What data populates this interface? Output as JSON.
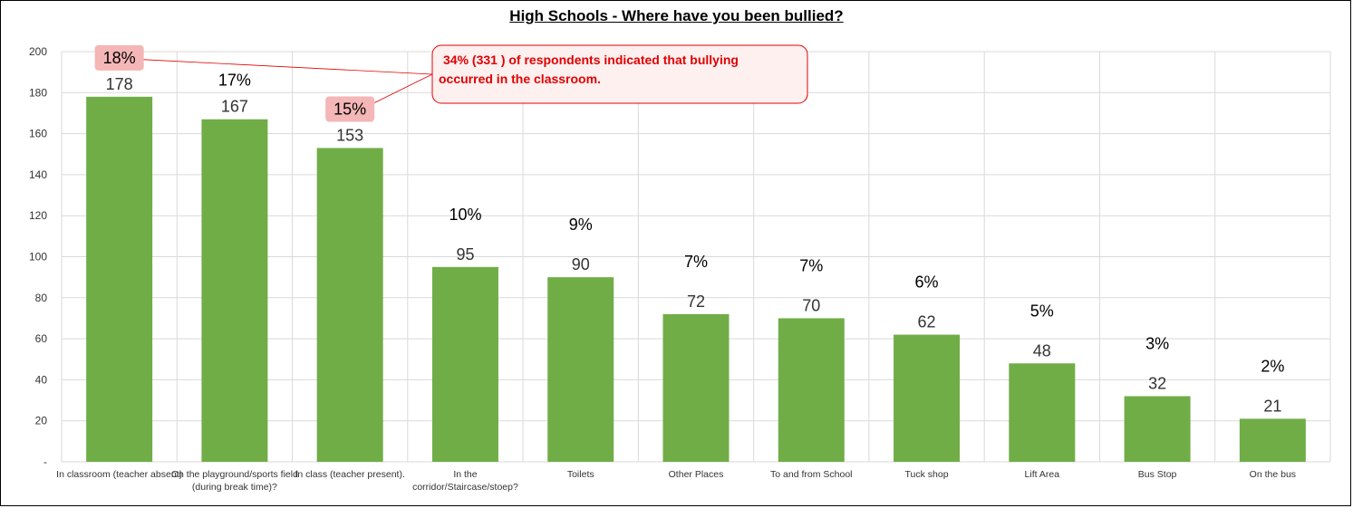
{
  "chart_data": {
    "type": "bar",
    "title": "High Schools - Where have you been bullied?",
    "categories": [
      "In classroom (teacher absent)",
      "On the playground/sports field (during break time)?",
      "In class (teacher present).",
      "In the corridor/Staircase/stoep?",
      "Toilets",
      "Other Places",
      "To and from School",
      "Tuck shop",
      "Lift Area",
      "Bus Stop",
      "On the bus"
    ],
    "values": [
      178,
      167,
      153,
      95,
      90,
      72,
      70,
      62,
      48,
      32,
      21
    ],
    "percent_labels": [
      "18%",
      "17%",
      "15%",
      "10%",
      "9%",
      "7%",
      "7%",
      "6%",
      "5%",
      "3%",
      "2%"
    ],
    "highlighted_percent_indices": [
      0,
      2
    ],
    "ylim": [
      0,
      200
    ],
    "yticks": [
      "-",
      "20",
      "40",
      "60",
      "80",
      "100",
      "120",
      "140",
      "160",
      "180",
      "200"
    ],
    "xlabel": "",
    "ylabel": "",
    "grid": true,
    "colors": {
      "bar": "#70ad47",
      "grid": "#d9d9d9",
      "highlight_fill": "#f4b6b6",
      "callout_border": "#e00000",
      "callout_fill": "#fff0f0",
      "callout_text": "#e00000"
    },
    "annotation": {
      "line1": "34%  (331 ) of respondents indicated that bullying",
      "line2": "occurred in the classroom."
    }
  }
}
